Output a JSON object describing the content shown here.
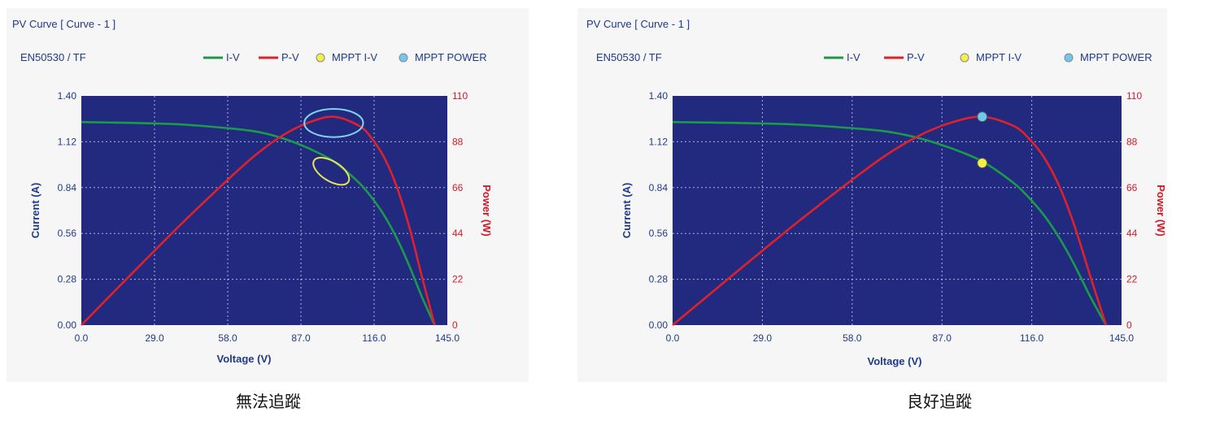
{
  "chart_data": [
    {
      "type": "line",
      "title": "PV Curve [ Curve - 1 ]",
      "subtitle": "EN50530 / TF",
      "xlabel": "Voltage (V)",
      "ylabel": "Current (A)",
      "y2label": "Power (W)",
      "xlim": [
        0,
        145
      ],
      "ylim": [
        0,
        1.4
      ],
      "y2lim": [
        0,
        110
      ],
      "x_ticks": [
        "0.0",
        "29.0",
        "58.0",
        "87.0",
        "116.0",
        "145.0"
      ],
      "y_ticks": [
        "0.00",
        "0.28",
        "0.56",
        "0.84",
        "1.12",
        "1.40"
      ],
      "y2_ticks": [
        "0",
        "22",
        "44",
        "66",
        "88",
        "110"
      ],
      "grid": true,
      "legend": [
        "I-V",
        "P-V",
        "MPPT I-V",
        "MPPT POWER"
      ],
      "legend_position": "top",
      "series": [
        {
          "name": "I-V",
          "axis": "left",
          "color": "#1a9a4a",
          "x": [
            0,
            20,
            40,
            60,
            70,
            80,
            90,
            100,
            110,
            115,
            120,
            125,
            130,
            135,
            140
          ],
          "values": [
            1.24,
            1.235,
            1.225,
            1.2,
            1.18,
            1.14,
            1.08,
            1.0,
            0.87,
            0.78,
            0.67,
            0.53,
            0.36,
            0.17,
            0.0
          ]
        },
        {
          "name": "P-V",
          "axis": "right",
          "color": "#e0202a",
          "x": [
            0,
            20,
            40,
            60,
            70,
            80,
            90,
            100,
            110,
            115,
            120,
            125,
            130,
            135,
            140
          ],
          "values": [
            0,
            24.7,
            49.0,
            72.0,
            82.6,
            91.2,
            97.2,
            100.0,
            95.7,
            89.7,
            80.4,
            66.3,
            46.8,
            23.0,
            0
          ]
        }
      ],
      "annotations": [
        {
          "type": "ellipse",
          "target": "MPPT POWER",
          "color": "#7fd4f0",
          "cx": 100,
          "cy": 97,
          "rx_volts": 11,
          "ry_units": 6
        },
        {
          "type": "ellipse",
          "target": "MPPT I-V",
          "color": "#e8e060",
          "cx": 99,
          "cy": 0.94,
          "rx_volts": 8,
          "ry_units": 0.06
        }
      ],
      "caption": "無法追蹤"
    },
    {
      "type": "line",
      "title": "PV Curve [ Curve - 1 ]",
      "subtitle": "EN50530 / TF",
      "xlabel": "Voltage (V)",
      "ylabel": "Current (A)",
      "y2label": "Power (W)",
      "xlim": [
        0,
        145
      ],
      "ylim": [
        0,
        1.4
      ],
      "y2lim": [
        0,
        110
      ],
      "x_ticks": [
        "0.0",
        "29.0",
        "58.0",
        "87.0",
        "116.0",
        "145.0"
      ],
      "y_ticks": [
        "0.00",
        "0.28",
        "0.56",
        "0.84",
        "1.12",
        "1.40"
      ],
      "y2_ticks": [
        "0",
        "22",
        "44",
        "66",
        "88",
        "110"
      ],
      "grid": true,
      "legend": [
        "I-V",
        "P-V",
        "MPPT I-V",
        "MPPT POWER"
      ],
      "legend_position": "top",
      "series": [
        {
          "name": "I-V",
          "axis": "left",
          "color": "#1a9a4a",
          "x": [
            0,
            20,
            40,
            60,
            70,
            80,
            90,
            100,
            110,
            115,
            120,
            125,
            130,
            135,
            140
          ],
          "values": [
            1.24,
            1.235,
            1.225,
            1.2,
            1.18,
            1.14,
            1.08,
            1.0,
            0.87,
            0.78,
            0.67,
            0.53,
            0.36,
            0.17,
            0.0
          ]
        },
        {
          "name": "P-V",
          "axis": "right",
          "color": "#e0202a",
          "x": [
            0,
            20,
            40,
            60,
            70,
            80,
            90,
            100,
            110,
            115,
            120,
            125,
            130,
            135,
            140
          ],
          "values": [
            0,
            24.7,
            49.0,
            72.0,
            82.6,
            91.2,
            97.2,
            100.0,
            95.7,
            89.7,
            80.4,
            66.3,
            46.8,
            23.0,
            0
          ]
        }
      ],
      "markers": [
        {
          "name": "MPPT I-V",
          "axis": "left",
          "x": 100,
          "y": 0.99,
          "color": "#f2f04a"
        },
        {
          "name": "MPPT POWER",
          "axis": "right",
          "x": 100,
          "y": 100,
          "color": "#6ec8f0"
        }
      ],
      "caption": "良好追蹤"
    }
  ],
  "colors": {
    "plot_bg": "#222a80",
    "iv": "#1a9a4a",
    "pv": "#e0202a",
    "mppt_iv": "#f2f04a",
    "mppt_power": "#6ec8f0"
  }
}
